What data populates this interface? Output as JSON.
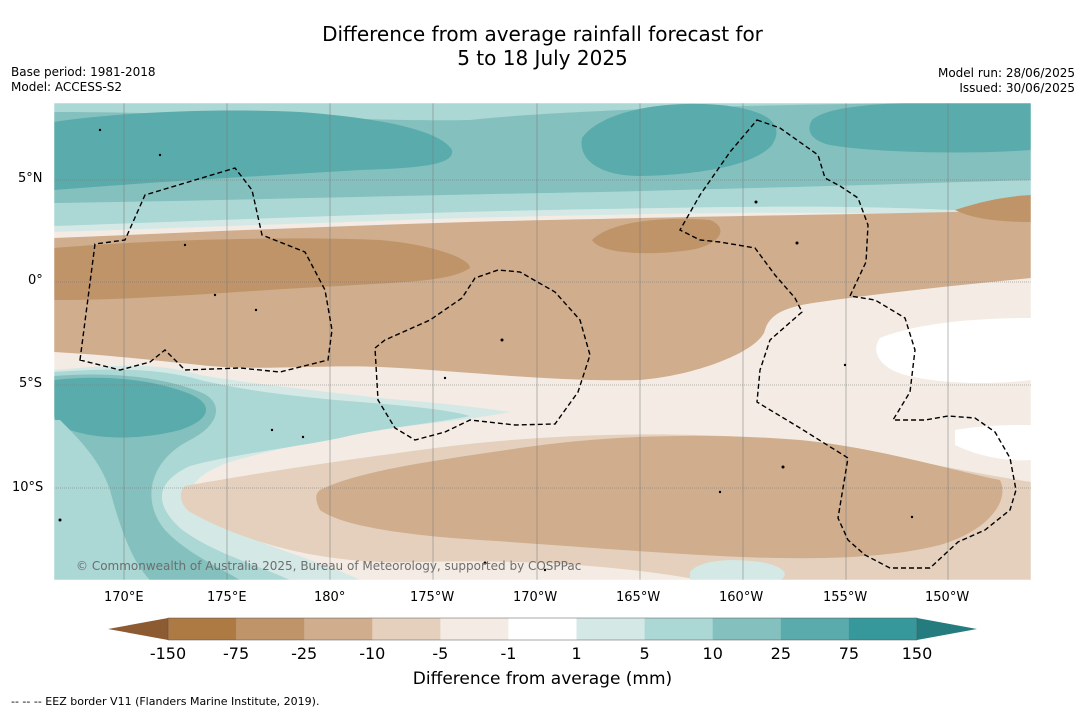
{
  "title": {
    "line1": "Difference from average rainfall forecast for",
    "line2": "5 to 18 July 2025"
  },
  "meta_left": {
    "base_period": "Base period: 1981-2018",
    "model": "Model: ACCESS-S2"
  },
  "meta_right": {
    "model_run": "Model run: 28/06/2025",
    "issued": "Issued: 30/06/2025"
  },
  "map": {
    "lat_labels": [
      "5°N",
      "0°",
      "5°S",
      "10°S"
    ],
    "lon_labels": [
      "170°E",
      "175°E",
      "180°",
      "175°W",
      "170°W",
      "165°W",
      "160°W",
      "155°W",
      "150°W"
    ],
    "copyright": "© Commonwealth of Australia 2025, Bureau of Meteorology, supported by COSPPac"
  },
  "colorbar": {
    "labels": [
      "-150",
      "-75",
      "-25",
      "-10",
      "-5",
      "-1",
      "1",
      "5",
      "10",
      "25",
      "75",
      "150"
    ],
    "colors": [
      "#8d5b31",
      "#ae7a43",
      "#bf9469",
      "#cfad8d",
      "#e4d0bd",
      "#f4ebe4",
      "#ffffff",
      "#d4e9e6",
      "#abd7d4",
      "#83c0be",
      "#5aabab",
      "#36989a",
      "#257c7e"
    ],
    "title": "Difference from average (mm)"
  },
  "footer": "--  --  -- EEZ border V11 (Flanders Marine Institute, 2019)."
}
